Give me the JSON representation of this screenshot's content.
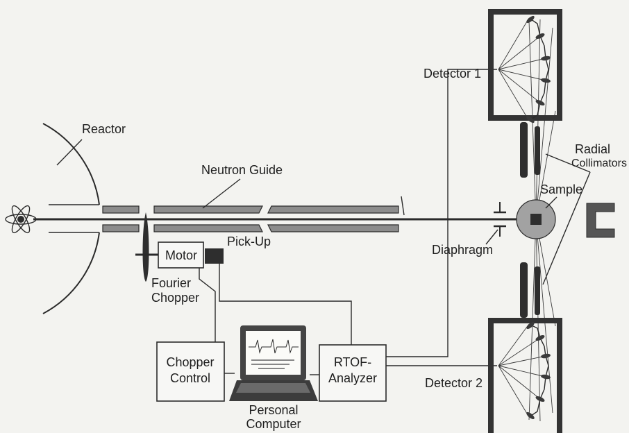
{
  "labels": {
    "reactor": "Reactor",
    "neutron_guide": "Neutron Guide",
    "motor": "Motor",
    "pick_up": "Pick-Up",
    "fourier_chopper": [
      "Fourier",
      "Chopper"
    ],
    "chopper_control": [
      "Chopper",
      "Control"
    ],
    "personal_computer": [
      "Personal",
      "Computer"
    ],
    "rtof_analyzer": [
      "RTOF-",
      "Analyzer"
    ],
    "detector_1": "Detector 1",
    "detector_2": "Detector 2",
    "radial_collimators": [
      "Radial",
      "Collimators"
    ],
    "sample": "Sample",
    "diaphragm": "Diaphragm"
  },
  "colors": {
    "background": "#f3f3f0",
    "guide": "#8c8c8c",
    "sample": "#a2a2a2",
    "dark": "#2e2e2e",
    "screen": "#fbfbf8"
  },
  "icons": {
    "atom": "atom-icon",
    "computer": "laptop-icon"
  }
}
